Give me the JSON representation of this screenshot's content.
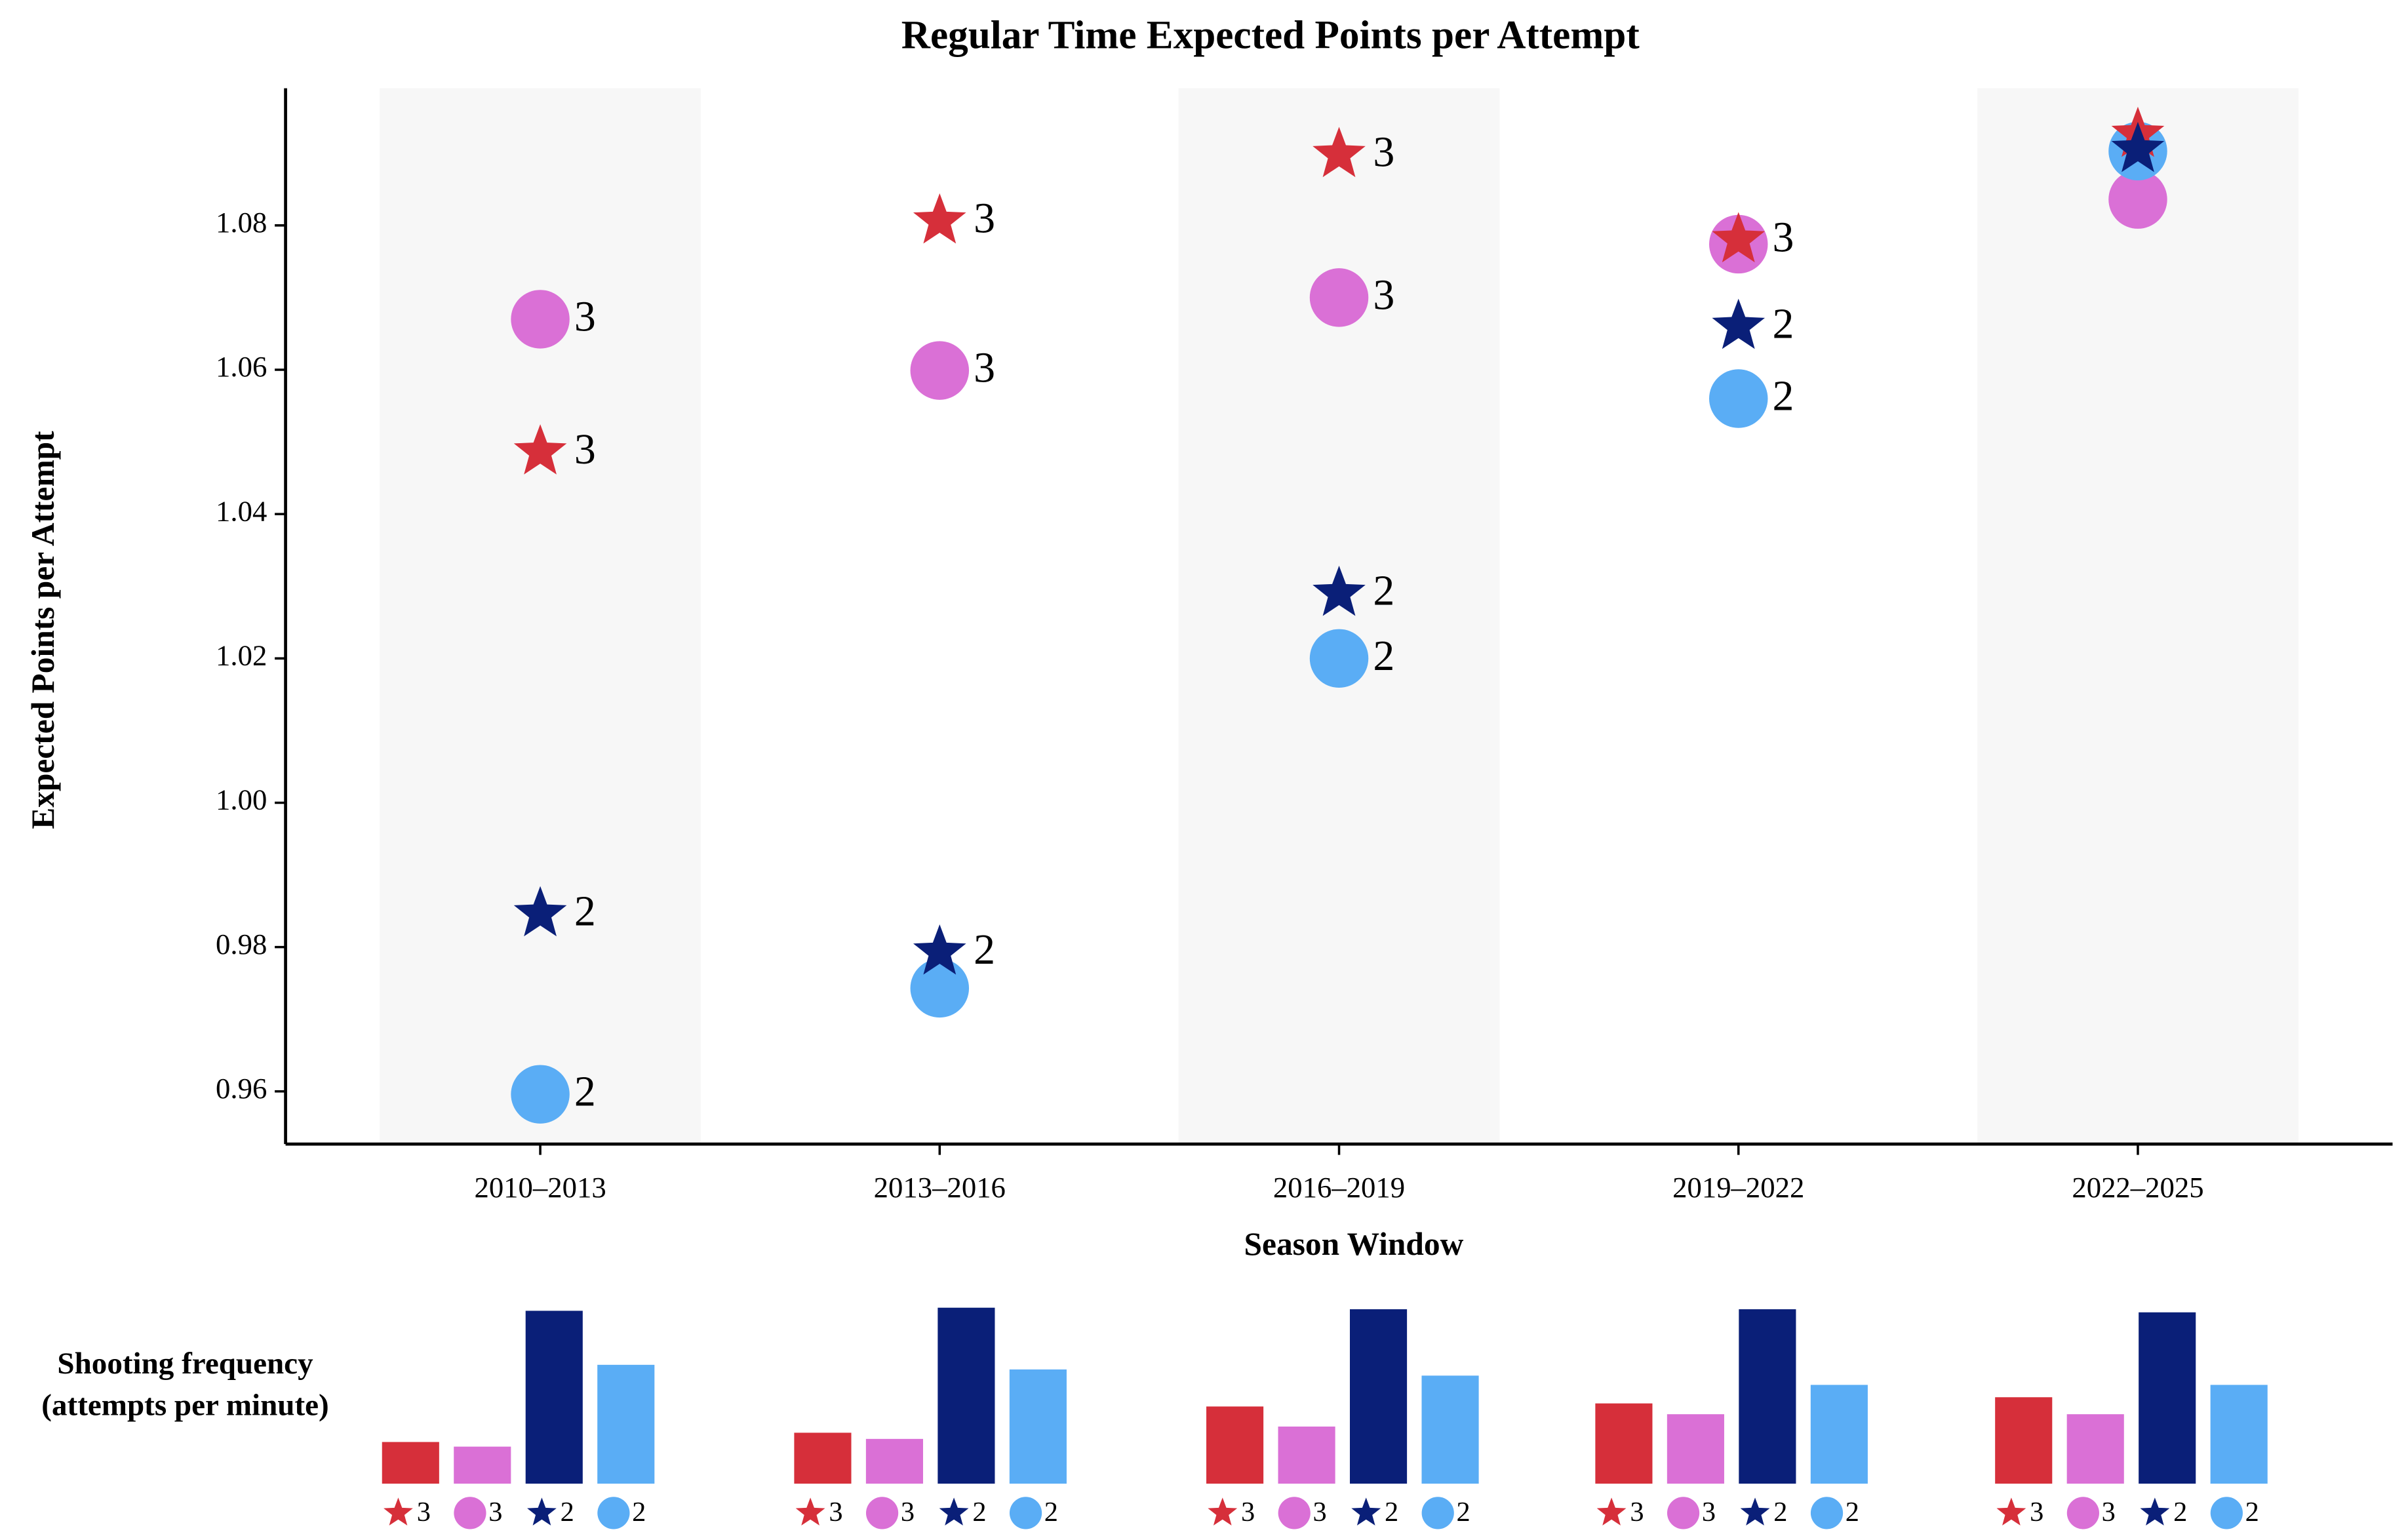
{
  "chart_data": [
    {
      "type": "scatter",
      "title": "Regular Time Expected Points per Attempt",
      "xlabel": "Season Window",
      "ylabel": "Expected Points per Attempt",
      "categories": [
        "2010–2013",
        "2013–2016",
        "2016–2019",
        "2019–2022",
        "2022–2025"
      ],
      "ylim": [
        0.9527,
        1.099
      ],
      "yticks": [
        0.96,
        0.98,
        {
          "value": 1,
          "label": "1.00"
        },
        1.02,
        1.04,
        1.06,
        1.08
      ],
      "shaded_bands": [
        0,
        2,
        4
      ],
      "series": [
        {
          "name": "3",
          "marker": "star",
          "color": "#d62f3a",
          "values": [
            1.0486,
            1.0806,
            1.0898,
            1.078,
            1.0926
          ],
          "point_labels": [
            "3",
            "3",
            "3",
            "3",
            null
          ]
        },
        {
          "name": "3",
          "marker": "circle",
          "color": "#da70d6",
          "values": [
            1.067,
            1.0599,
            1.07,
            1.0774,
            1.0836
          ],
          "point_labels": [
            "3",
            "3",
            "3",
            null,
            null
          ]
        },
        {
          "name": "2",
          "marker": "star",
          "color": "#0a1f78",
          "values": [
            0.9846,
            0.9793,
            1.029,
            1.066,
            1.0905
          ],
          "point_labels": [
            "2",
            "2",
            "2",
            "2",
            null
          ]
        },
        {
          "name": "2",
          "marker": "circle",
          "color": "#5aadf5",
          "values": [
            0.9596,
            0.9743,
            1.02,
            1.056,
            1.0903
          ],
          "point_labels": [
            "2",
            null,
            "2",
            "2",
            null
          ]
        }
      ]
    },
    {
      "type": "grouped_bar",
      "title_lines": [
        "Shooting frequency",
        "(attempts per minute)"
      ],
      "ylim": [
        0,
        1.2
      ],
      "series": [
        {
          "name": "3",
          "marker": "star",
          "color": "#d62f3a",
          "values": [
            0.27,
            0.33,
            0.5,
            0.52,
            0.56
          ]
        },
        {
          "name": "3",
          "marker": "circle",
          "color": "#da70d6",
          "values": [
            0.24,
            0.29,
            0.37,
            0.45,
            0.45
          ]
        },
        {
          "name": "2",
          "marker": "star",
          "color": "#0a1f78",
          "values": [
            1.12,
            1.14,
            1.13,
            1.13,
            1.11
          ]
        },
        {
          "name": "2",
          "marker": "circle",
          "color": "#5aadf5",
          "values": [
            0.77,
            0.74,
            0.7,
            0.64,
            0.64
          ]
        }
      ]
    }
  ]
}
